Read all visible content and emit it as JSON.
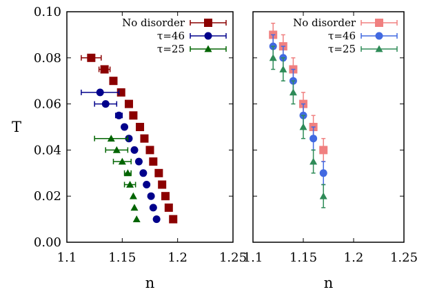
{
  "chart_data": [
    {
      "type": "scatter",
      "xlabel": "n",
      "ylabel": "T",
      "xlim": [
        1.1,
        1.25
      ],
      "ylim": [
        0.0,
        0.1
      ],
      "xticks": [
        "1.1",
        "1.15",
        "1.2",
        "1.25"
      ],
      "yticks": [
        "0.00",
        "0.02",
        "0.04",
        "0.06",
        "0.08",
        "0.10"
      ],
      "legend_position": "top-right",
      "series": [
        {
          "name": "No disorder",
          "marker": "square",
          "color": "#8b0000",
          "points": [
            {
              "x": 1.122,
              "y": 0.08,
              "xerr": 0.009
            },
            {
              "x": 1.134,
              "y": 0.075,
              "xerr": 0.005
            },
            {
              "x": 1.142,
              "y": 0.07,
              "xerr": 0.003
            },
            {
              "x": 1.149,
              "y": 0.065,
              "xerr": 0.003
            },
            {
              "x": 1.156,
              "y": 0.06,
              "xerr": 0.003
            },
            {
              "x": 1.16,
              "y": 0.055,
              "xerr": 0.0
            },
            {
              "x": 1.166,
              "y": 0.05,
              "xerr": 0.0
            },
            {
              "x": 1.17,
              "y": 0.045,
              "xerr": 0.0
            },
            {
              "x": 1.175,
              "y": 0.04,
              "xerr": 0.0
            },
            {
              "x": 1.178,
              "y": 0.035,
              "xerr": 0.0
            },
            {
              "x": 1.183,
              "y": 0.03,
              "xerr": 0.0
            },
            {
              "x": 1.186,
              "y": 0.025,
              "xerr": 0.0
            },
            {
              "x": 1.189,
              "y": 0.02,
              "xerr": 0.0
            },
            {
              "x": 1.192,
              "y": 0.015,
              "xerr": 0.0
            },
            {
              "x": 1.196,
              "y": 0.01,
              "xerr": 0.0
            }
          ]
        },
        {
          "name": "τ=46",
          "marker": "circle",
          "color": "#00008b",
          "points": [
            {
              "x": 1.13,
              "y": 0.065,
              "xerr": 0.017
            },
            {
              "x": 1.135,
              "y": 0.06,
              "xerr": 0.01
            },
            {
              "x": 1.147,
              "y": 0.055,
              "xerr": 0.003
            },
            {
              "x": 1.152,
              "y": 0.05,
              "xerr": 0.0
            },
            {
              "x": 1.156,
              "y": 0.045,
              "xerr": 0.0
            },
            {
              "x": 1.161,
              "y": 0.04,
              "xerr": 0.0
            },
            {
              "x": 1.165,
              "y": 0.035,
              "xerr": 0.0
            },
            {
              "x": 1.169,
              "y": 0.03,
              "xerr": 0.0
            },
            {
              "x": 1.172,
              "y": 0.025,
              "xerr": 0.0
            },
            {
              "x": 1.176,
              "y": 0.02,
              "xerr": 0.0
            },
            {
              "x": 1.178,
              "y": 0.015,
              "xerr": 0.0
            },
            {
              "x": 1.181,
              "y": 0.01,
              "xerr": 0.0
            }
          ]
        },
        {
          "name": "τ=25",
          "marker": "triangle",
          "color": "#006400",
          "points": [
            {
              "x": 1.14,
              "y": 0.045,
              "xerr": 0.015
            },
            {
              "x": 1.145,
              "y": 0.04,
              "xerr": 0.01
            },
            {
              "x": 1.15,
              "y": 0.035,
              "xerr": 0.008
            },
            {
              "x": 1.155,
              "y": 0.03,
              "xerr": 0.003
            },
            {
              "x": 1.157,
              "y": 0.025,
              "xerr": 0.005
            },
            {
              "x": 1.16,
              "y": 0.02,
              "xerr": 0.0
            },
            {
              "x": 1.161,
              "y": 0.015,
              "xerr": 0.0
            },
            {
              "x": 1.163,
              "y": 0.01,
              "xerr": 0.0
            }
          ]
        }
      ]
    },
    {
      "type": "scatter",
      "xlabel": "n",
      "ylabel": "",
      "xlim": [
        1.1,
        1.25
      ],
      "ylim": [
        0.0,
        0.1
      ],
      "xticks": [
        "1.1",
        "1.15",
        "1.2",
        "1.25"
      ],
      "yticks": [],
      "legend_position": "top-right",
      "series": [
        {
          "name": "No disorder",
          "marker": "square",
          "color": "#f08080",
          "points": [
            {
              "x": 1.12,
              "y": 0.09,
              "yerr": 0.005
            },
            {
              "x": 1.13,
              "y": 0.085,
              "yerr": 0.005
            },
            {
              "x": 1.14,
              "y": 0.075,
              "yerr": 0.005
            },
            {
              "x": 1.15,
              "y": 0.06,
              "yerr": 0.005
            },
            {
              "x": 1.16,
              "y": 0.05,
              "yerr": 0.005
            },
            {
              "x": 1.17,
              "y": 0.04,
              "yerr": 0.005
            }
          ]
        },
        {
          "name": "τ=46",
          "marker": "circle",
          "color": "#4169e1",
          "points": [
            {
              "x": 1.12,
              "y": 0.085,
              "yerr": 0.005
            },
            {
              "x": 1.13,
              "y": 0.08,
              "yerr": 0.005
            },
            {
              "x": 1.14,
              "y": 0.07,
              "yerr": 0.005
            },
            {
              "x": 1.15,
              "y": 0.055,
              "yerr": 0.005
            },
            {
              "x": 1.16,
              "y": 0.045,
              "yerr": 0.005
            },
            {
              "x": 1.17,
              "y": 0.03,
              "yerr": 0.005
            }
          ]
        },
        {
          "name": "τ=25",
          "marker": "triangle",
          "color": "#2e8b57",
          "points": [
            {
              "x": 1.12,
              "y": 0.08,
              "yerr": 0.005
            },
            {
              "x": 1.13,
              "y": 0.075,
              "yerr": 0.005
            },
            {
              "x": 1.14,
              "y": 0.065,
              "yerr": 0.005
            },
            {
              "x": 1.15,
              "y": 0.05,
              "yerr": 0.005
            },
            {
              "x": 1.16,
              "y": 0.035,
              "yerr": 0.005
            },
            {
              "x": 1.17,
              "y": 0.02,
              "yerr": 0.005
            }
          ]
        }
      ]
    }
  ]
}
